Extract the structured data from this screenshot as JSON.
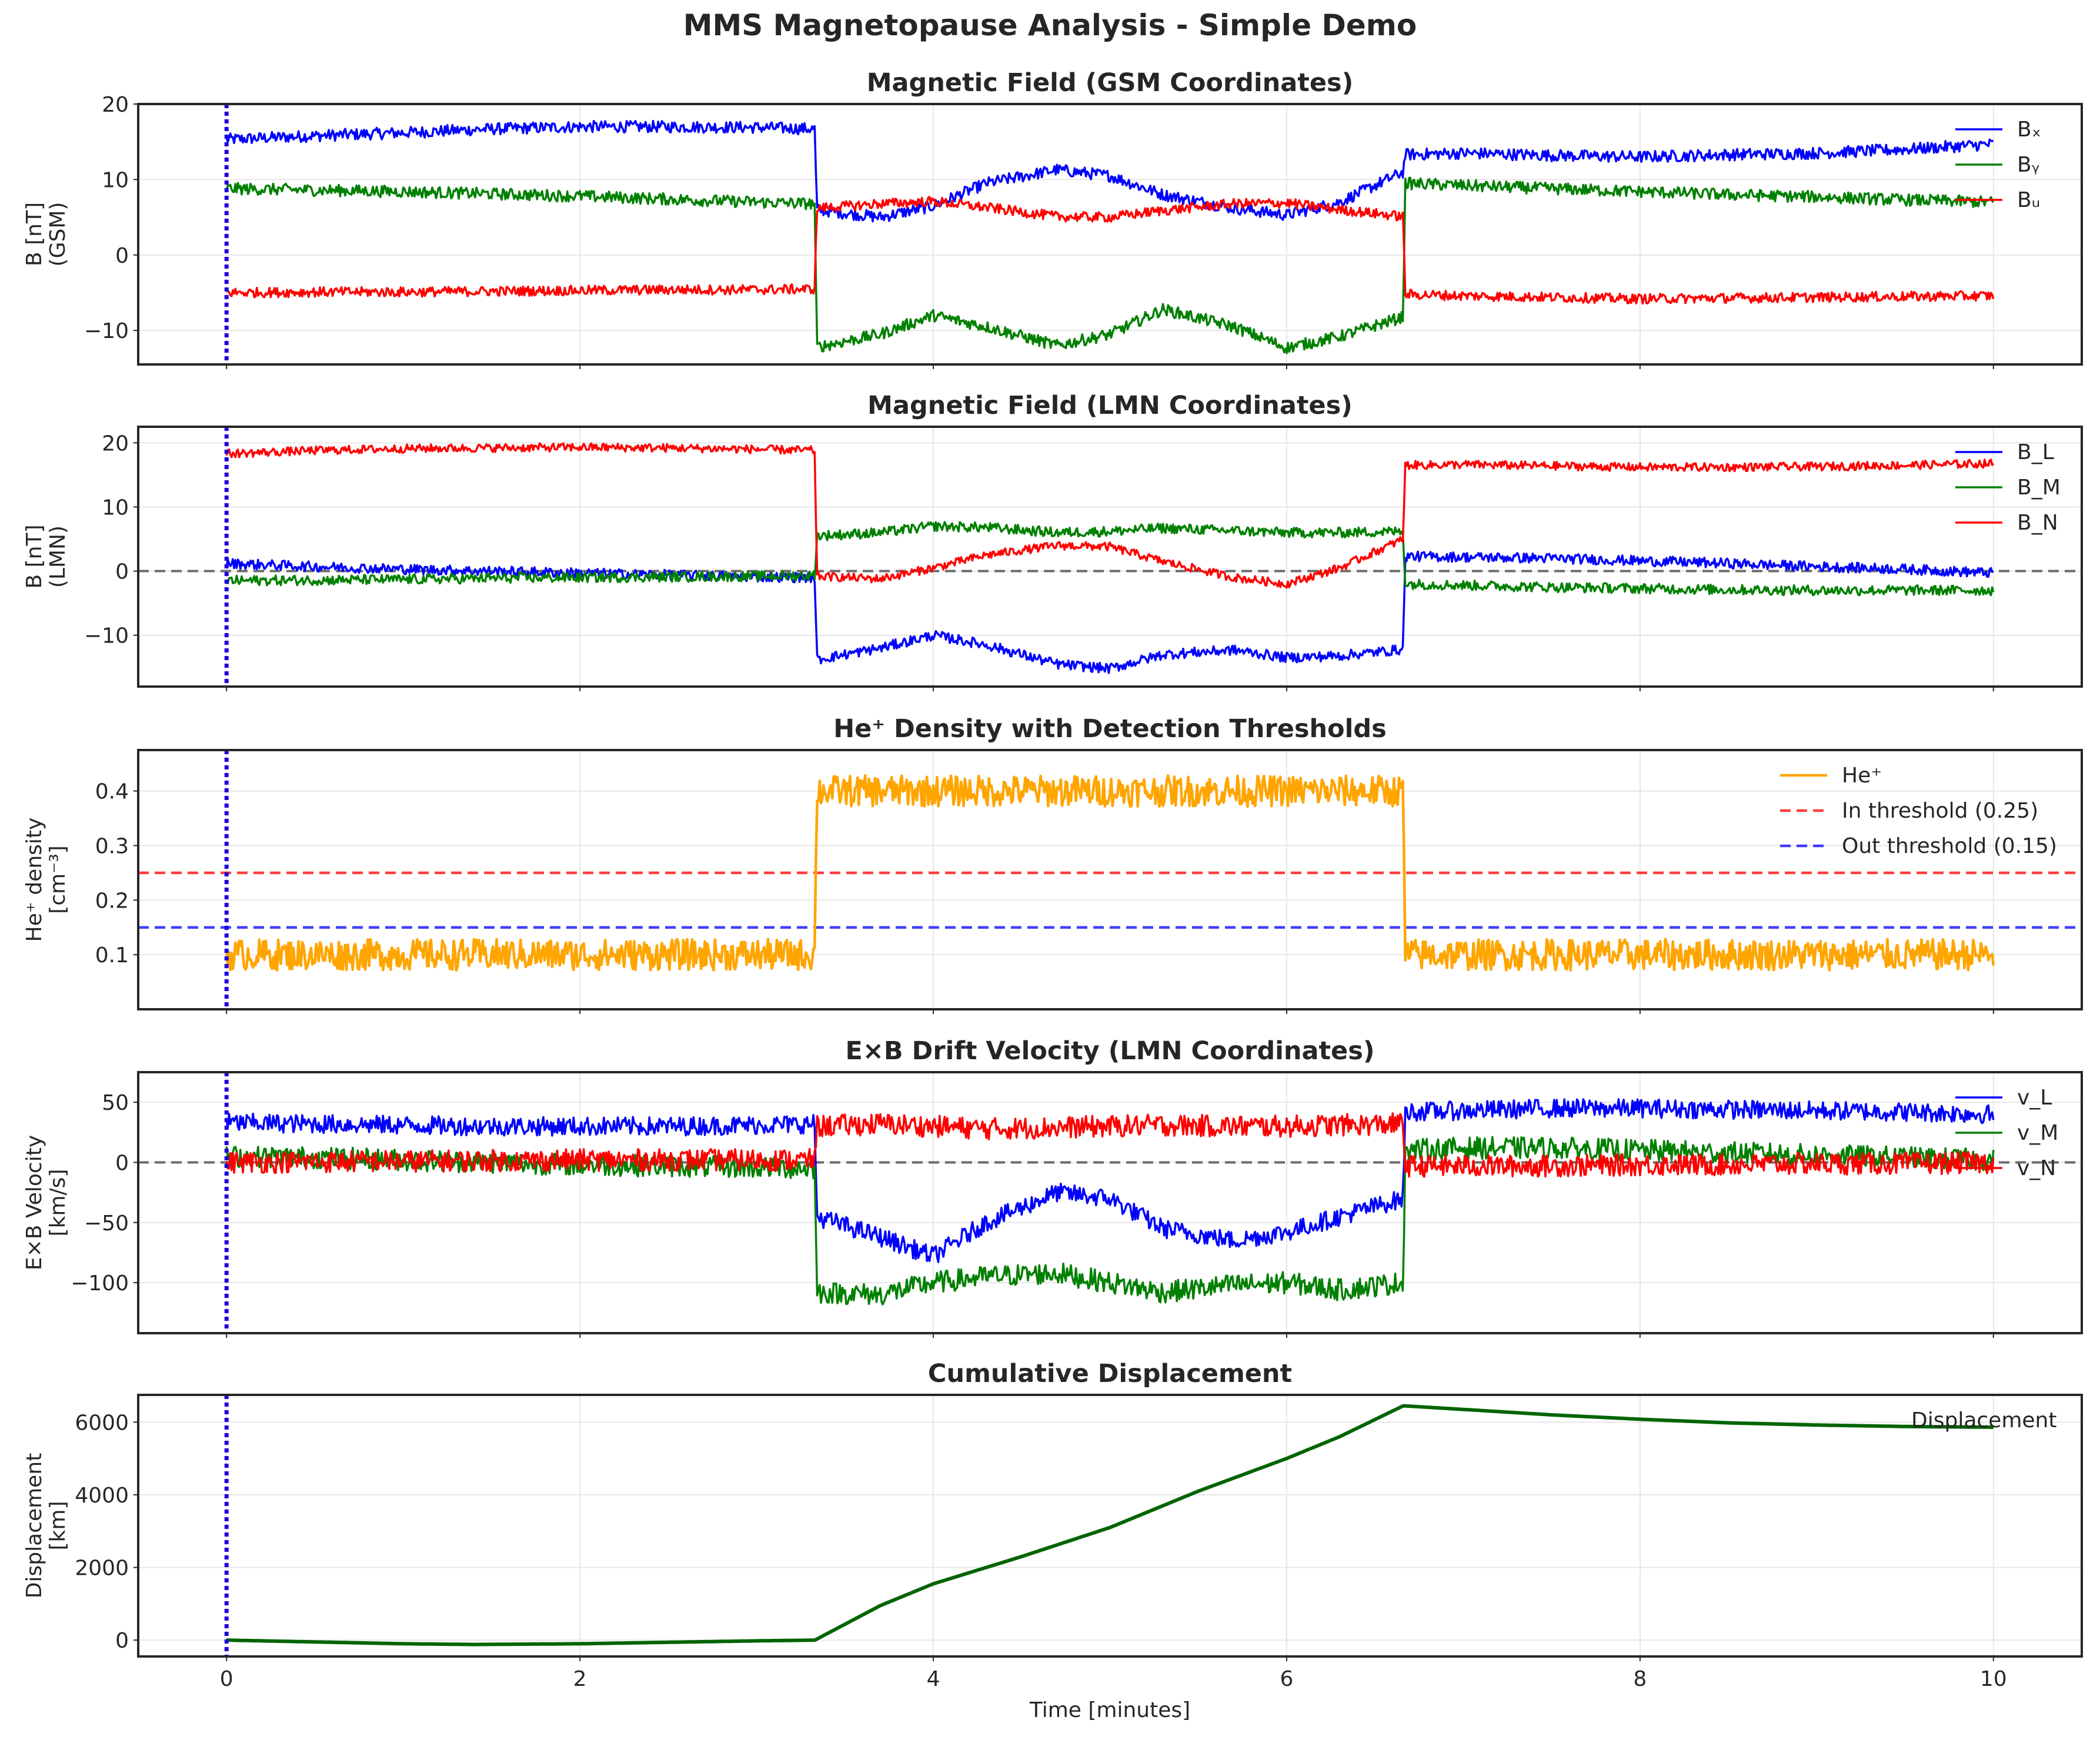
{
  "figure": {
    "title": "MMS Magnetopause Analysis - Simple Demo",
    "xlabel": "Time [minutes]",
    "xlim": [
      -0.5,
      10.5
    ],
    "xticks": [
      0,
      2,
      4,
      6,
      8,
      10
    ],
    "marker_time": 0,
    "marker_color": "#1f00e0"
  },
  "chart_data": [
    {
      "type": "line",
      "title": "Magnetic Field (GSM Coordinates)",
      "ylabel": [
        "B [nT]",
        "(GSM)"
      ],
      "ylim": [
        -14.5,
        20
      ],
      "yticks": [
        -10,
        0,
        10,
        20
      ],
      "grid": true,
      "legend_position": "top-right",
      "x": [
        0,
        0.5,
        1,
        1.5,
        2,
        2.5,
        3,
        3.33,
        3.34,
        3.7,
        4.0,
        4.3,
        4.7,
        5.0,
        5.3,
        5.7,
        6.0,
        6.3,
        6.66,
        6.67,
        7,
        7.5,
        8,
        8.5,
        9,
        9.5,
        10
      ],
      "series": [
        {
          "name": "Bₓ",
          "color": "#0000ff",
          "noise": 0.6,
          "values": [
            15.3,
            15.8,
            16.2,
            16.7,
            17.0,
            17.0,
            16.9,
            16.7,
            6.0,
            5.0,
            6.5,
            9.5,
            11.3,
            10.5,
            8.0,
            6.2,
            5.3,
            7.0,
            11.0,
            13.3,
            13.5,
            13.2,
            13.0,
            13.3,
            13.5,
            14.0,
            14.7
          ]
        },
        {
          "name": "Bᵧ",
          "color": "#008000",
          "noise": 0.6,
          "values": [
            8.8,
            8.6,
            8.4,
            8.1,
            7.8,
            7.4,
            7.0,
            6.8,
            -12.2,
            -10.5,
            -8.0,
            -9.5,
            -12.0,
            -10.5,
            -7.2,
            -9.5,
            -12.3,
            -10.8,
            -8.2,
            9.5,
            9.2,
            8.8,
            8.4,
            8.0,
            7.7,
            7.3,
            7.0
          ]
        },
        {
          "name": "Bᵤ",
          "color": "#ff0000",
          "noise": 0.5,
          "values": [
            -5.0,
            -4.9,
            -4.9,
            -4.8,
            -4.7,
            -4.6,
            -4.6,
            -4.5,
            6.2,
            6.8,
            7.1,
            6.3,
            5.1,
            5.0,
            5.9,
            6.8,
            6.9,
            6.0,
            5.1,
            -5.2,
            -5.4,
            -5.6,
            -5.8,
            -5.7,
            -5.6,
            -5.5,
            -5.4
          ]
        }
      ]
    },
    {
      "type": "line",
      "title": "Magnetic Field (LMN Coordinates)",
      "ylabel": [
        "B [nT]",
        "(LMN)"
      ],
      "ylim": [
        -18,
        22.5
      ],
      "yticks": [
        -10,
        0,
        10,
        20
      ],
      "grid": true,
      "zero_line": true,
      "legend_position": "top-right",
      "x": [
        0,
        0.5,
        1,
        1.5,
        2,
        2.5,
        3,
        3.33,
        3.34,
        3.7,
        4.0,
        4.3,
        4.7,
        5.0,
        5.3,
        5.7,
        6.0,
        6.3,
        6.66,
        6.67,
        7,
        7.5,
        8,
        8.5,
        9,
        9.5,
        10
      ],
      "series": [
        {
          "name": "B_L",
          "color": "#0000ff",
          "noise": 0.6,
          "values": [
            1.2,
            0.7,
            0.3,
            0.0,
            -0.3,
            -0.6,
            -0.9,
            -1.0,
            -13.8,
            -12.0,
            -10.0,
            -11.5,
            -14.5,
            -15.2,
            -13.0,
            -12.3,
            -13.5,
            -13.2,
            -12.2,
            2.3,
            2.2,
            2.0,
            1.6,
            1.2,
            0.7,
            0.3,
            -0.3
          ]
        },
        {
          "name": "B_M",
          "color": "#008000",
          "noise": 0.6,
          "values": [
            -1.5,
            -1.4,
            -1.3,
            -1.1,
            -1.0,
            -0.9,
            -0.8,
            -0.7,
            5.5,
            6.0,
            7.0,
            6.8,
            6.0,
            6.2,
            6.7,
            6.3,
            6.0,
            6.0,
            6.2,
            -2.0,
            -2.2,
            -2.5,
            -2.7,
            -2.9,
            -3.0,
            -3.0,
            -3.0
          ]
        },
        {
          "name": "B_N",
          "color": "#ff0000",
          "noise": 0.5,
          "values": [
            18.3,
            18.8,
            19.1,
            19.2,
            19.3,
            19.2,
            19.0,
            18.8,
            -0.8,
            -1.2,
            0.5,
            2.5,
            4.0,
            3.8,
            1.5,
            -1.0,
            -2.0,
            0.5,
            5.0,
            16.5,
            16.6,
            16.4,
            16.2,
            16.2,
            16.3,
            16.5,
            16.8
          ]
        }
      ]
    },
    {
      "type": "line",
      "title": "He⁺ Density with Detection Thresholds",
      "ylabel": [
        "He⁺ density",
        "[cm⁻³]"
      ],
      "ylim": [
        0.0,
        0.475
      ],
      "yticks": [
        0.1,
        0.2,
        0.3,
        0.4
      ],
      "ytick_labels": [
        "0.1",
        "0.2",
        "0.3",
        "0.4"
      ],
      "grid": true,
      "legend_position": "top-right",
      "x": [
        0,
        3.33,
        3.34,
        6.66,
        6.67,
        10
      ],
      "series": [
        {
          "name": "He⁺",
          "color": "#ffa500",
          "noise": 0.022,
          "width": 4.5,
          "values": [
            0.1,
            0.1,
            0.4,
            0.4,
            0.1,
            0.1
          ]
        }
      ],
      "thresholds": [
        {
          "name": "In threshold (0.25)",
          "value": 0.25,
          "color": "#ff0000"
        },
        {
          "name": "Out threshold (0.15)",
          "value": 0.15,
          "color": "#0000ff"
        }
      ]
    },
    {
      "type": "line",
      "title": "E×B Drift Velocity (LMN Coordinates)",
      "ylabel": [
        "E×B Velocity",
        "[km/s]"
      ],
      "ylim": [
        -142,
        75
      ],
      "yticks": [
        -100,
        -50,
        0,
        50
      ],
      "ytick_labels": [
        "−100",
        "−50",
        "0",
        "50"
      ],
      "grid": true,
      "zero_line": true,
      "legend_position": "top-right",
      "x": [
        0,
        0.5,
        1,
        1.5,
        2,
        2.5,
        3,
        3.33,
        3.34,
        3.7,
        4.0,
        4.3,
        4.7,
        5.0,
        5.3,
        5.7,
        6.0,
        6.3,
        6.66,
        6.67,
        7,
        7.5,
        8,
        8.5,
        9,
        9.5,
        10
      ],
      "series": [
        {
          "name": "v_L",
          "color": "#0000ff",
          "noise": 6,
          "values": [
            33,
            32,
            31,
            30,
            30,
            30,
            31,
            32,
            -45,
            -62,
            -78,
            -50,
            -25,
            -30,
            -55,
            -65,
            -58,
            -45,
            -30,
            42,
            43,
            45,
            45,
            44,
            43,
            42,
            40
          ]
        },
        {
          "name": "v_M",
          "color": "#008000",
          "noise": 7,
          "values": [
            5,
            4,
            2,
            0,
            -2,
            -3,
            -4,
            -5,
            -108,
            -110,
            -100,
            -95,
            -92,
            -100,
            -108,
            -102,
            -100,
            -106,
            -100,
            10,
            12,
            12,
            10,
            8,
            6,
            4,
            2
          ]
        },
        {
          "name": "v_N",
          "color": "#ff0000",
          "noise": 7,
          "values": [
            0,
            0.5,
            1,
            1.5,
            2,
            2,
            2,
            2,
            30,
            32,
            30,
            28,
            29,
            30,
            31,
            30,
            30,
            31,
            32,
            -3,
            -3,
            -3,
            -2,
            -2,
            -1,
            -1,
            0
          ]
        }
      ]
    },
    {
      "type": "line",
      "title": "Cumulative Displacement",
      "ylabel": [
        "Displacement",
        "[km]"
      ],
      "ylim": [
        -450,
        6750
      ],
      "yticks": [
        0,
        2000,
        4000,
        6000
      ],
      "grid": true,
      "legend_position": "top-right",
      "x": [
        0,
        0.5,
        1,
        1.4,
        2,
        2.5,
        3,
        3.33,
        3.7,
        4.0,
        4.5,
        5.0,
        5.5,
        6.0,
        6.3,
        6.66,
        7,
        7.5,
        8,
        8.5,
        9,
        9.5,
        10
      ],
      "series": [
        {
          "name": "Displacement",
          "color": "#006400",
          "noise": 0,
          "width": 6,
          "values": [
            0,
            -50,
            -100,
            -120,
            -100,
            -60,
            -20,
            0,
            950,
            1550,
            2300,
            3100,
            4100,
            5000,
            5600,
            6450,
            6350,
            6200,
            6080,
            5980,
            5920,
            5880,
            5860
          ]
        }
      ]
    }
  ]
}
